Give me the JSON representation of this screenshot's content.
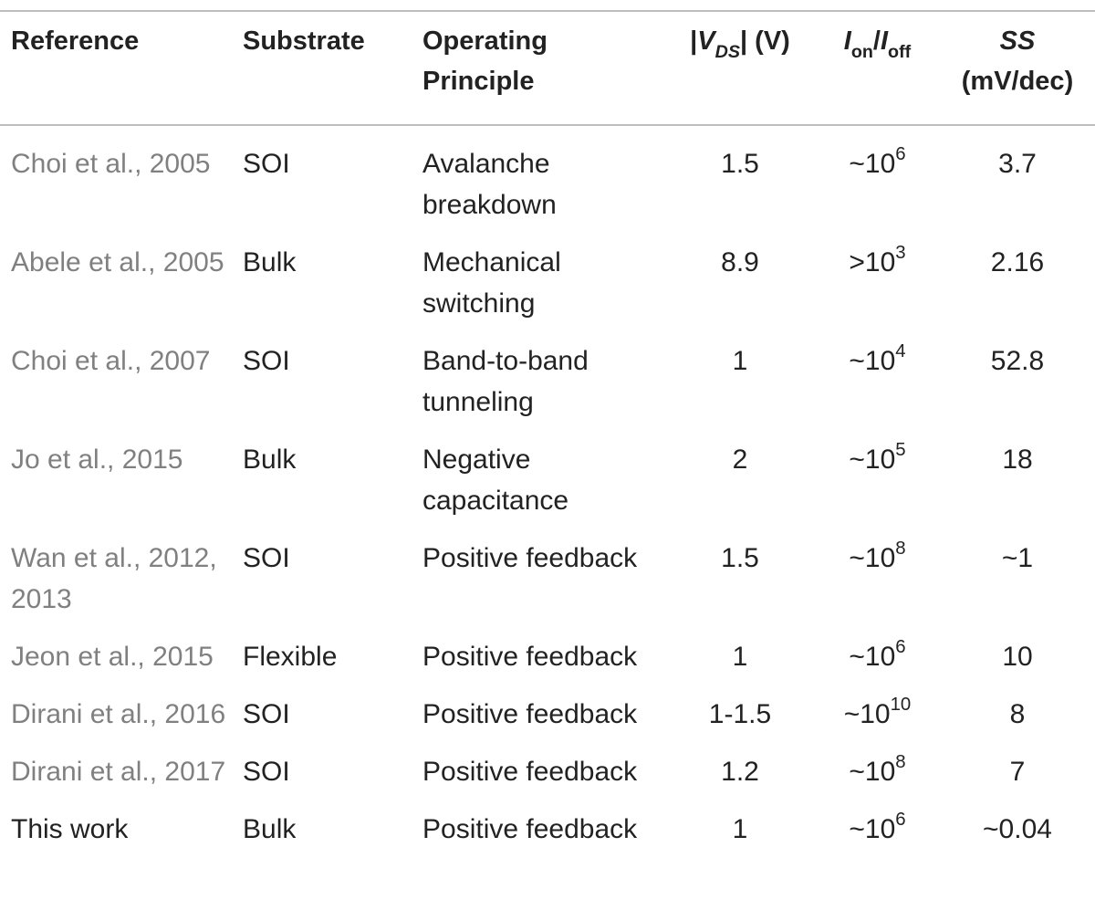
{
  "table": {
    "headers": {
      "reference": "Reference",
      "substrate": "Substrate",
      "principle_line1": "Operating",
      "principle_line2": "Principle",
      "vds_bar_left": "|",
      "vds_symbol": "V",
      "vds_sub": "DS",
      "vds_bar_right": "|",
      "vds_unit": " (V)",
      "ratio_on_symbol": "I",
      "ratio_on_sub": "on",
      "ratio_slash": "/",
      "ratio_off_symbol": "I",
      "ratio_off_sub": "off",
      "ss_line1": "SS",
      "ss_line2": "(mV/dec)"
    },
    "rows": [
      {
        "reference": "Choi et al., 2005",
        "substrate": "SOI",
        "principle": "Avalanche breakdown",
        "vds": "1.5",
        "ratio_prefix": "~10",
        "ratio_exp": "6",
        "ss": "3.7"
      },
      {
        "reference": "Abele et al., 2005",
        "substrate": "Bulk",
        "principle": "Mechanical switching",
        "vds": "8.9",
        "ratio_prefix": ">10",
        "ratio_exp": "3",
        "ss": "2.16"
      },
      {
        "reference": "Choi et al., 2007",
        "substrate": "SOI",
        "principle": "Band-to-band tunneling",
        "vds": "1",
        "ratio_prefix": "~10",
        "ratio_exp": "4",
        "ss": "52.8"
      },
      {
        "reference": "Jo et al., 2015",
        "substrate": "Bulk",
        "principle": "Negative capacitance",
        "vds": "2",
        "ratio_prefix": "~10",
        "ratio_exp": "5",
        "ss": "18"
      },
      {
        "reference": "Wan et al., 2012, 2013",
        "substrate": "SOI",
        "principle": "Positive feedback",
        "vds": "1.5",
        "ratio_prefix": "~10",
        "ratio_exp": "8",
        "ss": "~1"
      },
      {
        "reference": "Jeon et al., 2015",
        "substrate": "Flexible",
        "principle": "Positive feedback",
        "vds": "1",
        "ratio_prefix": "~10",
        "ratio_exp": "6",
        "ss": "10"
      },
      {
        "reference": "Dirani et al., 2016",
        "substrate": "SOI",
        "principle": "Positive feedback",
        "vds": "1-1.5",
        "ratio_prefix": "~10",
        "ratio_exp": "10",
        "ss": "8"
      },
      {
        "reference": "Dirani et al., 2017",
        "substrate": "SOI",
        "principle": "Positive feedback",
        "vds": "1.2",
        "ratio_prefix": "~10",
        "ratio_exp": "8",
        "ss": "7"
      },
      {
        "reference": "This work",
        "substrate": "Bulk",
        "principle": "Positive feedback",
        "vds": "1",
        "ratio_prefix": "~10",
        "ratio_exp": "6",
        "ss": "~0.04"
      }
    ]
  }
}
